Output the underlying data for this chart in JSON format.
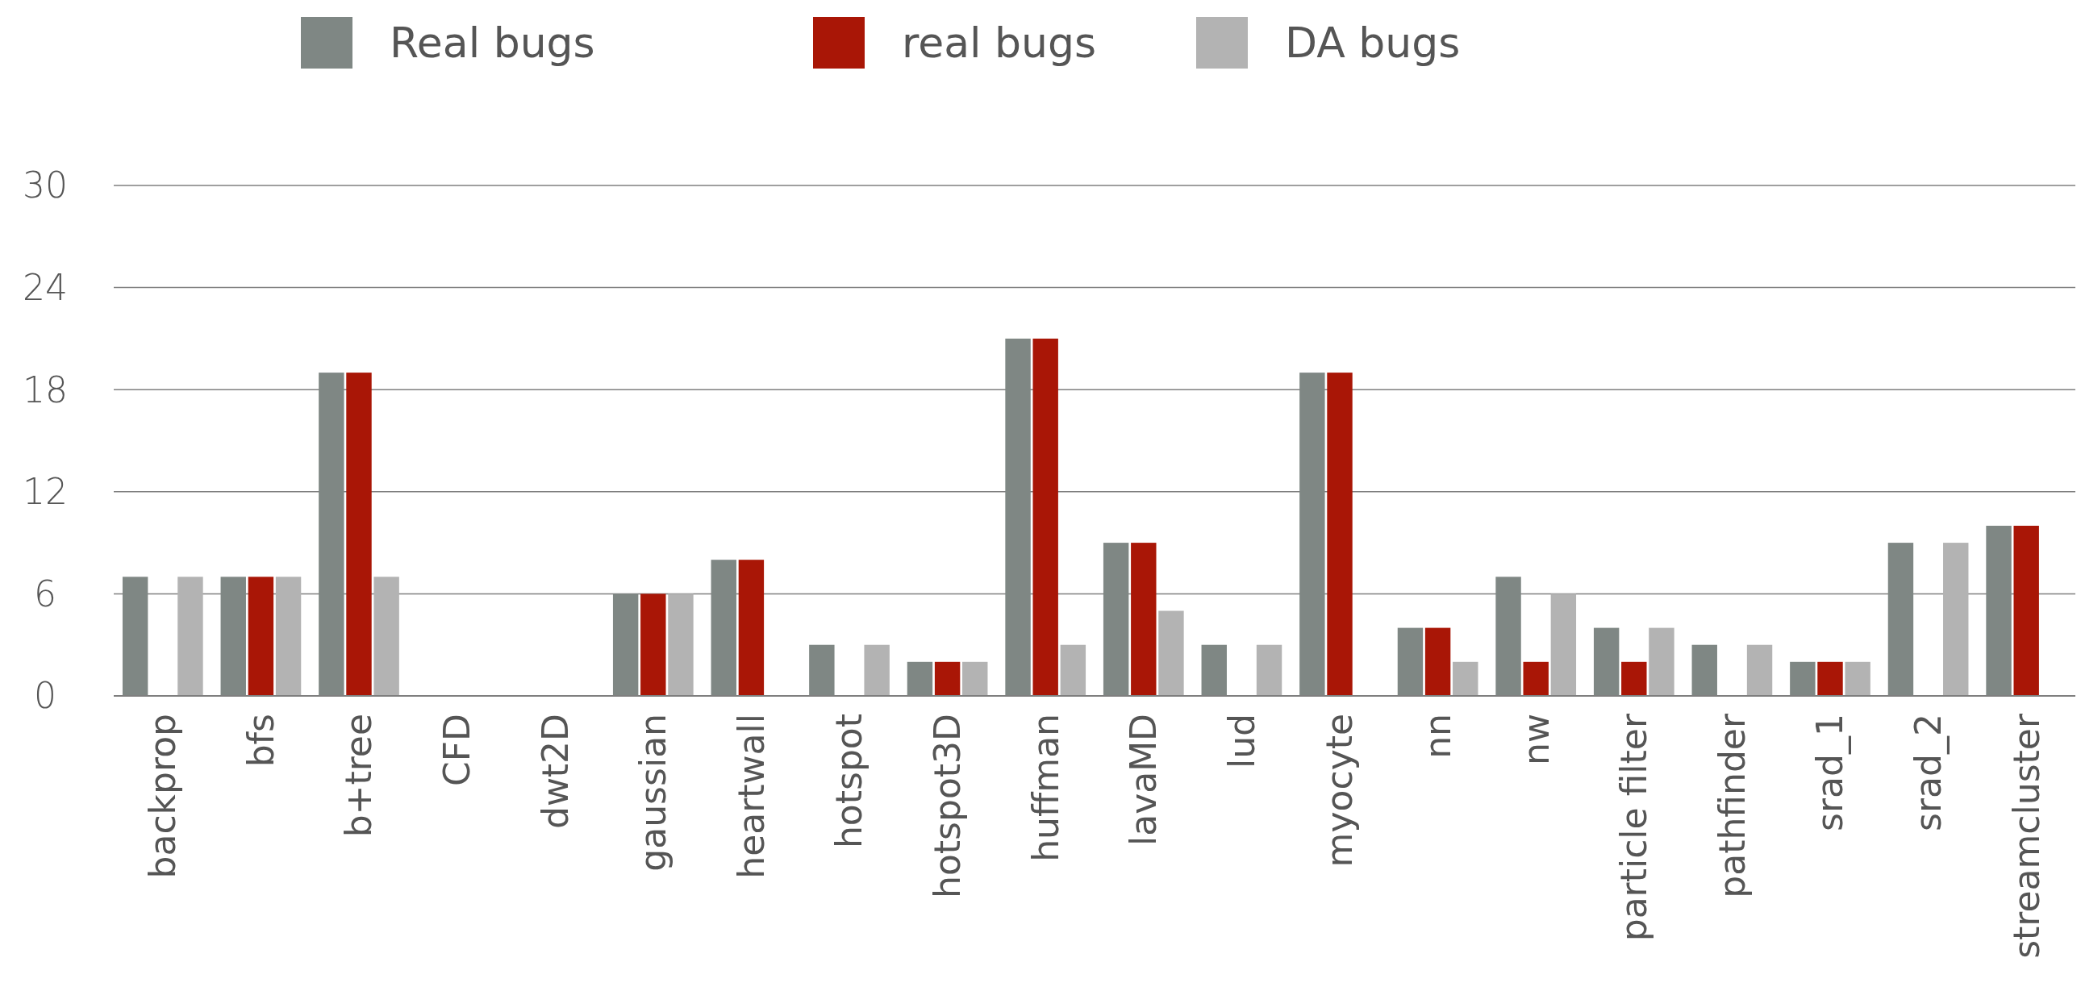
{
  "chart_data": {
    "type": "bar",
    "categories": [
      "backprop",
      "bfs",
      "b+tree",
      "CFD",
      "dwt2D",
      "gaussian",
      "heartwall",
      "hotspot",
      "hotspot3D",
      "huffman",
      "lavaMD",
      "lud",
      "myocyte",
      "nn",
      "nw",
      "particle filter",
      "pathfinder",
      "srad_1",
      "srad_2",
      "streamcluster"
    ],
    "series": [
      {
        "name": "Real bugs",
        "color": "#7f8784",
        "values": [
          7,
          7,
          19,
          0,
          0,
          6,
          8,
          3,
          2,
          21,
          9,
          3,
          19,
          4,
          7,
          4,
          3,
          2,
          9,
          10
        ]
      },
      {
        "name": "real bugs",
        "color": "#a91606",
        "values": [
          0,
          7,
          19,
          0,
          0,
          6,
          8,
          0,
          2,
          21,
          9,
          0,
          19,
          4,
          2,
          2,
          0,
          2,
          0,
          10
        ]
      },
      {
        "name": "DA bugs",
        "color": "#b3b3b3",
        "values": [
          7,
          7,
          7,
          0,
          0,
          6,
          0,
          3,
          2,
          3,
          5,
          3,
          0,
          2,
          6,
          4,
          3,
          2,
          9,
          0
        ]
      }
    ],
    "ylim": [
      0,
      30
    ],
    "yticks": [
      0,
      6,
      12,
      18,
      24,
      30
    ],
    "grid": "y",
    "legend": "top"
  }
}
